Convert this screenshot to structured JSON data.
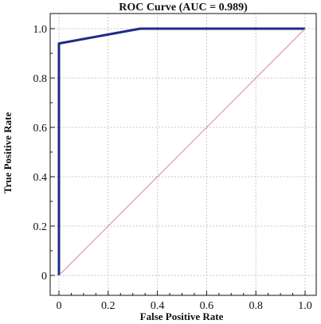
{
  "chart_data": {
    "type": "line",
    "title": "ROC Curve (AUC = 0.989)",
    "xlabel": "False Positive Rate",
    "ylabel": "True Positive Rate",
    "xlim": [
      0,
      1
    ],
    "ylim": [
      0,
      1
    ],
    "x_ticks": [
      0,
      0.2,
      0.4,
      0.6,
      0.8,
      1.0
    ],
    "x_tick_labels": [
      "0",
      "0.2",
      "0.4",
      "0.6",
      "0.8",
      "1.0"
    ],
    "y_ticks": [
      0,
      0.2,
      0.4,
      0.6,
      0.8,
      1.0
    ],
    "y_tick_labels": [
      "0",
      "0.2",
      "0.4",
      "0.6",
      "0.8",
      "1.0"
    ],
    "grid": true,
    "series": [
      {
        "x": [
          0,
          0,
          0.33,
          1.0
        ],
        "y": [
          0,
          0.94,
          1.0,
          1.0
        ],
        "color": "#1f2a8a"
      },
      {
        "x": [
          0,
          1
        ],
        "y": [
          0,
          1
        ],
        "color": "#e0829a",
        "style": "diagonal-reference"
      }
    ]
  }
}
